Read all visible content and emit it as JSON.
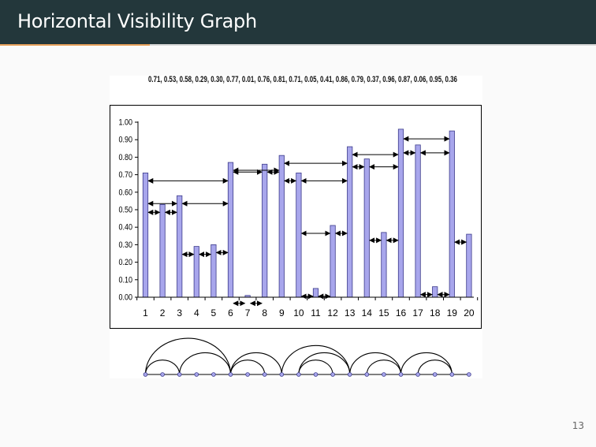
{
  "slide": {
    "title": "Horizontal Visibility Graph",
    "page_number": "13",
    "sequence_text": "0.71, 0.53, 0.58, 0.29, 0.30, 0.77, 0.01, 0.76, 0.81, 0.71, 0.05, 0.41, 0.86, 0.79, 0.37, 0.96, 0.87, 0.06, 0.95, 0.36"
  },
  "colors": {
    "title_bar": "#23373b",
    "accent": "#e7a15b",
    "bar_fill": "#a8a6ec",
    "bar_stroke": "#3b3a8a"
  },
  "chart_data": {
    "type": "bar",
    "categories": [
      "1",
      "2",
      "3",
      "4",
      "5",
      "6",
      "7",
      "8",
      "9",
      "10",
      "11",
      "12",
      "13",
      "14",
      "15",
      "16",
      "17",
      "18",
      "19",
      "20"
    ],
    "values": [
      0.71,
      0.53,
      0.58,
      0.29,
      0.3,
      0.77,
      0.01,
      0.76,
      0.81,
      0.71,
      0.05,
      0.41,
      0.86,
      0.79,
      0.37,
      0.96,
      0.87,
      0.06,
      0.95,
      0.36
    ],
    "yticks": [
      "0.00",
      "0.10",
      "0.20",
      "0.30",
      "0.40",
      "0.50",
      "0.60",
      "0.70",
      "0.80",
      "0.90",
      "1.00"
    ],
    "ylim": [
      0,
      1.0
    ],
    "grid": false,
    "visibility_links": [
      [
        1,
        2
      ],
      [
        1,
        3
      ],
      [
        1,
        6
      ],
      [
        2,
        3
      ],
      [
        3,
        4
      ],
      [
        3,
        6
      ],
      [
        4,
        5
      ],
      [
        5,
        6
      ],
      [
        6,
        7
      ],
      [
        6,
        8
      ],
      [
        6,
        9
      ],
      [
        7,
        8
      ],
      [
        8,
        9
      ],
      [
        9,
        10
      ],
      [
        9,
        13
      ],
      [
        10,
        11
      ],
      [
        10,
        12
      ],
      [
        10,
        13
      ],
      [
        11,
        12
      ],
      [
        12,
        13
      ],
      [
        13,
        14
      ],
      [
        13,
        16
      ],
      [
        14,
        15
      ],
      [
        14,
        16
      ],
      [
        15,
        16
      ],
      [
        16,
        17
      ],
      [
        16,
        19
      ],
      [
        17,
        18
      ],
      [
        17,
        19
      ],
      [
        18,
        19
      ],
      [
        19,
        20
      ]
    ]
  }
}
